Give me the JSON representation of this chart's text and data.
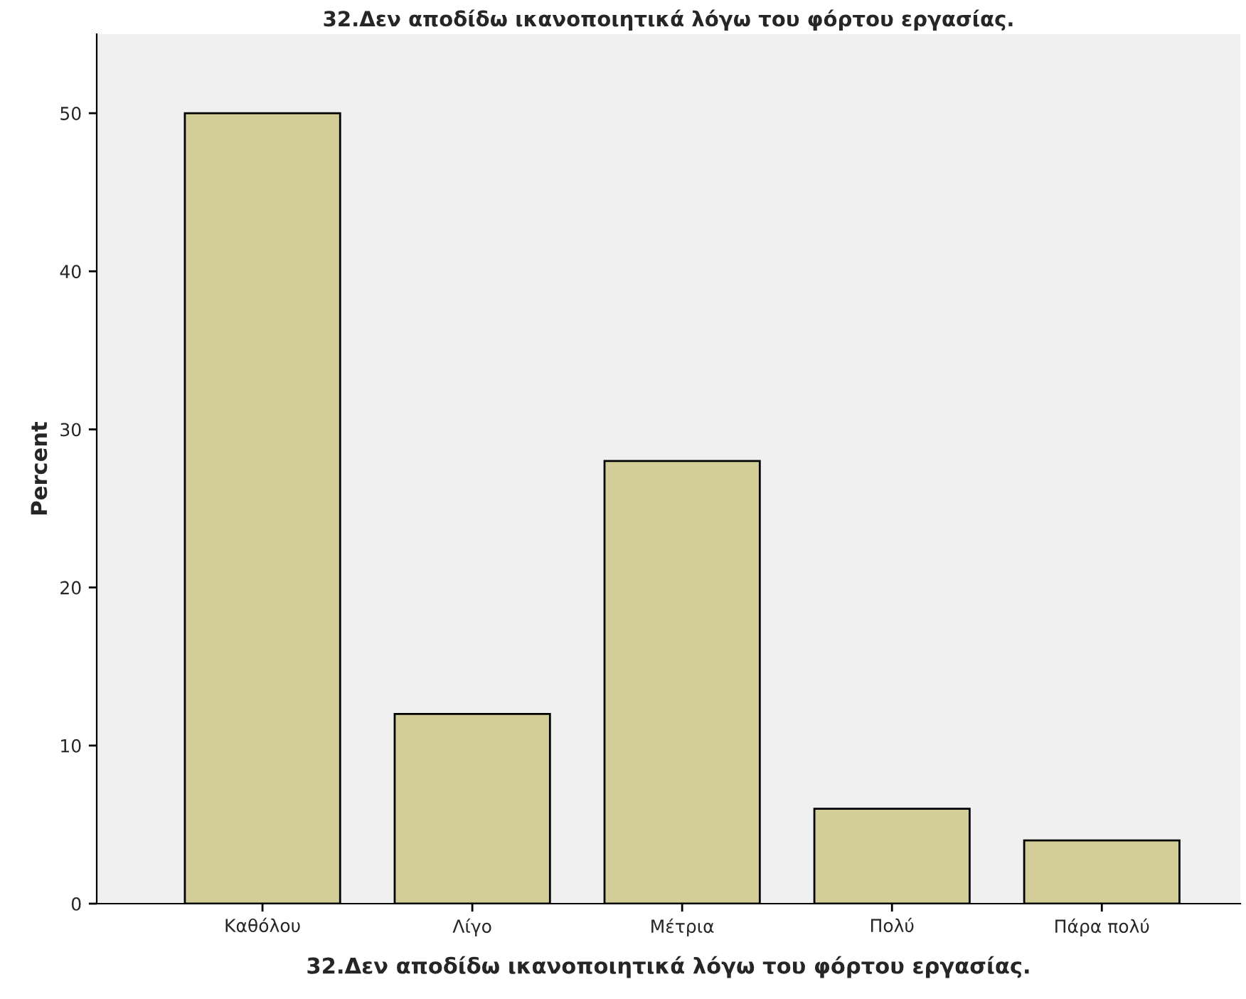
{
  "chart_data": {
    "type": "bar",
    "title": "32.Δεν αποδίδω ικανοποιητικά λόγω του φόρτου εργασίας.",
    "xlabel": "32.Δεν αποδίδω ικανοποιητικά λόγω του φόρτου εργασίας.",
    "ylabel": "Percent",
    "categories": [
      "Καθόλου",
      "Λίγο",
      "Μέτρια",
      "Πολύ",
      "Πάρα πολύ"
    ],
    "values": [
      50,
      12,
      28,
      6,
      4
    ],
    "color": "#d3ce97",
    "ylim": [
      0,
      55
    ],
    "yticks": [
      0,
      10,
      20,
      30,
      40,
      50
    ],
    "grid": false,
    "legend": false
  }
}
